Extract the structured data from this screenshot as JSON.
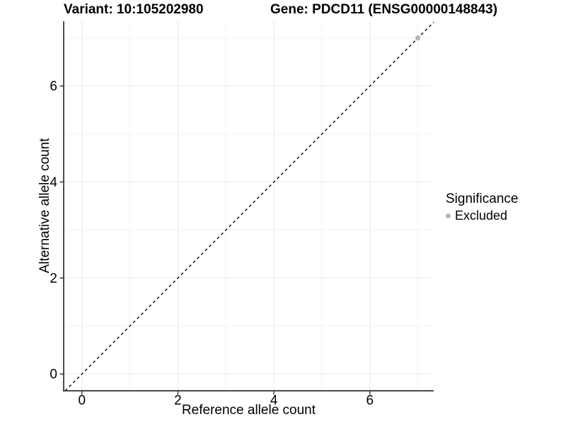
{
  "chart_data": {
    "type": "scatter",
    "title_left": "Variant: 10:105202980",
    "title_right": "Gene: PDCD11 (ENSG00000148843)",
    "xlabel": "Reference allele count",
    "ylabel": "Alternative allele count",
    "xlim": [
      -0.38,
      7.33
    ],
    "ylim": [
      -0.35,
      7.35
    ],
    "xticks": [
      0,
      2,
      4,
      6
    ],
    "yticks": [
      0,
      2,
      4,
      6
    ],
    "xticks_minor": [
      1,
      3,
      5,
      7
    ],
    "yticks_minor": [
      1,
      3,
      5,
      7
    ],
    "grid": true,
    "points": [
      {
        "x": 7,
        "y": 7,
        "series": "Excluded"
      }
    ],
    "reference_line": {
      "kind": "identity",
      "slope": 1,
      "intercept": 0,
      "style": "dashed",
      "color": "#000000"
    },
    "legend": {
      "title": "Significance",
      "position": "right",
      "items": [
        {
          "label": "Excluded",
          "color": "#b5b5b5"
        }
      ]
    },
    "colors": {
      "point": "#b5b5b5",
      "grid_major": "#e8e8e8",
      "grid_minor": "#f3f3f3",
      "axis_line": "#2f2f2f",
      "tick_text": "#000000"
    }
  }
}
